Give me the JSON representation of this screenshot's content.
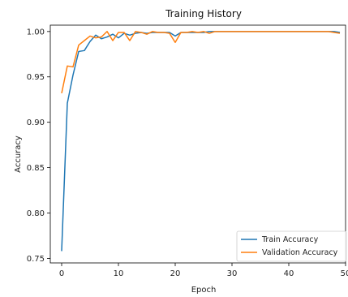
{
  "chart_data": {
    "type": "line",
    "title": "Training History",
    "xlabel": "Epoch",
    "ylabel": "Accuracy",
    "xlim": [
      -2,
      50
    ],
    "ylim": [
      0.745,
      1.007
    ],
    "xticks": [
      0,
      10,
      20,
      30,
      40,
      50
    ],
    "yticks": [
      0.75,
      0.8,
      0.85,
      0.9,
      0.95,
      1.0
    ],
    "ytick_labels": [
      "0.75",
      "0.80",
      "0.85",
      "0.90",
      "0.95",
      "1.00"
    ],
    "grid": false,
    "legend_position": "lower-right",
    "series": [
      {
        "name": "Train Accuracy",
        "color": "#1f77b4",
        "x": [
          0,
          1,
          2,
          3,
          4,
          5,
          6,
          7,
          8,
          9,
          10,
          11,
          12,
          13,
          14,
          15,
          16,
          17,
          18,
          19,
          20,
          21,
          22,
          23,
          24,
          25,
          26,
          27,
          28,
          29,
          30,
          31,
          32,
          33,
          34,
          35,
          36,
          37,
          38,
          39,
          40,
          41,
          42,
          43,
          44,
          45,
          46,
          47,
          48,
          49
        ],
        "y": [
          0.758,
          0.921,
          0.952,
          0.978,
          0.979,
          0.989,
          0.996,
          0.992,
          0.994,
          0.997,
          0.993,
          0.998,
          0.996,
          0.998,
          0.999,
          0.998,
          0.999,
          0.999,
          0.999,
          0.999,
          0.995,
          0.999,
          0.999,
          0.999,
          0.999,
          0.999,
          1.0,
          1.0,
          1.0,
          1.0,
          1.0,
          1.0,
          1.0,
          1.0,
          1.0,
          1.0,
          1.0,
          1.0,
          1.0,
          1.0,
          1.0,
          1.0,
          1.0,
          1.0,
          1.0,
          1.0,
          1.0,
          1.0,
          1.0,
          0.999
        ]
      },
      {
        "name": "Validation Accuracy",
        "color": "#ff7f0e",
        "x": [
          0,
          1,
          2,
          3,
          4,
          5,
          6,
          7,
          8,
          9,
          10,
          11,
          12,
          13,
          14,
          15,
          16,
          17,
          18,
          19,
          20,
          21,
          22,
          23,
          24,
          25,
          26,
          27,
          28,
          29,
          30,
          31,
          32,
          33,
          34,
          35,
          36,
          37,
          38,
          39,
          40,
          41,
          42,
          43,
          44,
          45,
          46,
          47,
          48,
          49
        ],
        "y": [
          0.932,
          0.962,
          0.961,
          0.985,
          0.99,
          0.995,
          0.993,
          0.994,
          1.0,
          0.99,
          0.999,
          0.999,
          0.99,
          1.0,
          0.999,
          0.997,
          1.0,
          0.999,
          0.999,
          0.998,
          0.988,
          0.999,
          0.999,
          1.0,
          0.999,
          1.0,
          0.998,
          1.0,
          1.0,
          1.0,
          1.0,
          1.0,
          1.0,
          1.0,
          1.0,
          1.0,
          1.0,
          1.0,
          1.0,
          1.0,
          1.0,
          1.0,
          1.0,
          1.0,
          1.0,
          1.0,
          1.0,
          1.0,
          0.999,
          0.998
        ]
      }
    ]
  }
}
